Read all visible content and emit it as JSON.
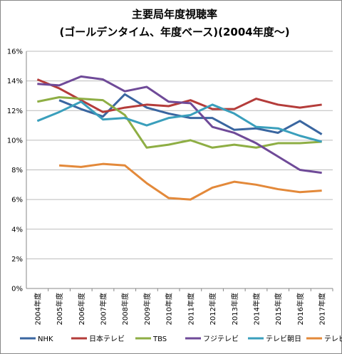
{
  "chart_data": {
    "type": "line",
    "title": [
      "主要局年度視聴率",
      "(ゴールデンタイム、年度ベース)(2004年度～)"
    ],
    "categories": [
      "2004年度",
      "2005年度",
      "2006年度",
      "2007年度",
      "2008年度",
      "2009年度",
      "2010年度",
      "2011年度",
      "2012年度",
      "2013年度",
      "2014年度",
      "2015年度",
      "2016年度",
      "2017年度"
    ],
    "series": [
      {
        "name": "NHK",
        "color": "#3a66a0",
        "values": [
          null,
          12.7,
          12.1,
          11.6,
          13.1,
          12.2,
          11.8,
          11.5,
          11.5,
          10.7,
          10.8,
          10.5,
          11.3,
          10.4
        ]
      },
      {
        "name": "日本テレビ",
        "color": "#b43c3a",
        "values": [
          14.1,
          13.5,
          12.7,
          11.9,
          12.2,
          12.4,
          12.3,
          12.7,
          12.1,
          12.1,
          12.8,
          12.4,
          12.2,
          12.4
        ]
      },
      {
        "name": "TBS",
        "color": "#8eae44",
        "values": [
          12.6,
          12.9,
          12.8,
          12.7,
          11.7,
          9.5,
          9.7,
          10.0,
          9.5,
          9.7,
          9.5,
          9.8,
          9.8,
          9.9
        ]
      },
      {
        "name": "フジテレビ",
        "color": "#6f4a98",
        "values": [
          13.8,
          13.7,
          14.3,
          14.1,
          13.3,
          13.6,
          12.6,
          12.5,
          10.9,
          10.5,
          9.8,
          8.9,
          8.0,
          7.8
        ]
      },
      {
        "name": "テレビ朝日",
        "color": "#3a9fbc",
        "values": [
          11.3,
          11.9,
          12.6,
          11.4,
          11.5,
          11.0,
          11.5,
          11.7,
          12.4,
          11.8,
          10.9,
          10.8,
          10.3,
          9.9
        ]
      },
      {
        "name": "テレビ東京",
        "color": "#e3893a",
        "values": [
          null,
          8.3,
          8.2,
          8.4,
          8.3,
          7.1,
          6.1,
          6.0,
          6.8,
          7.2,
          7.0,
          6.7,
          6.5,
          6.6
        ]
      }
    ],
    "ylim": [
      0,
      16
    ],
    "yticks": [
      {
        "value": 0,
        "label": "0%"
      },
      {
        "value": 2,
        "label": "2%"
      },
      {
        "value": 4,
        "label": "4%"
      },
      {
        "value": 6,
        "label": "6%"
      },
      {
        "value": 8,
        "label": "8%"
      },
      {
        "value": 10,
        "label": "10%"
      },
      {
        "value": 12,
        "label": "12%"
      },
      {
        "value": 14,
        "label": "14%"
      },
      {
        "value": 16,
        "label": "16%"
      }
    ],
    "grid": true,
    "legend": "bottom"
  }
}
